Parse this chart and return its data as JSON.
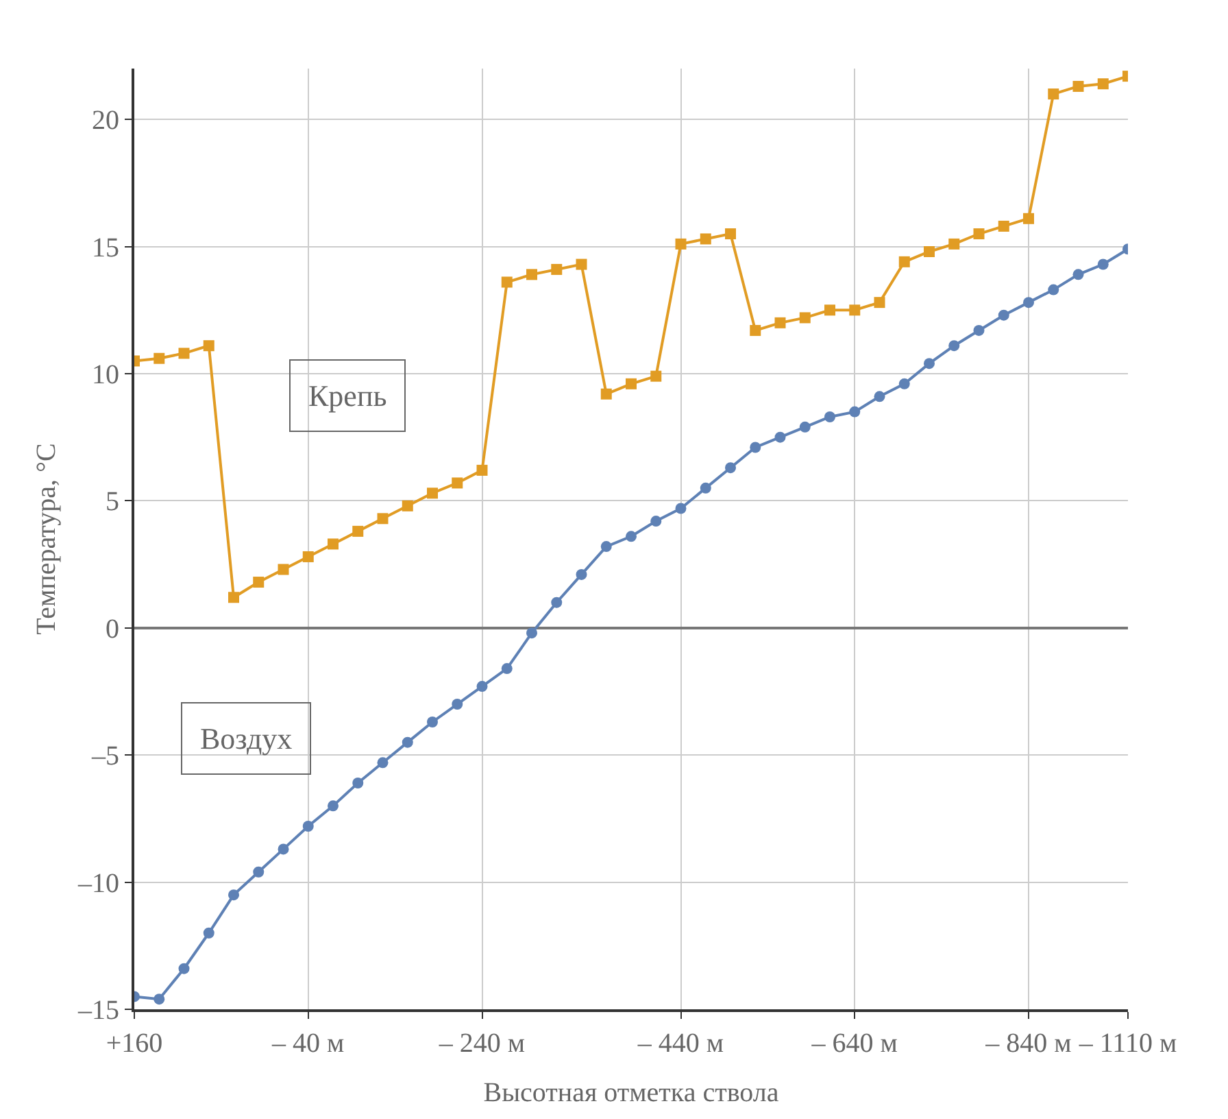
{
  "chart_data": {
    "type": "line",
    "xlabel": "Высотная отметка ствола",
    "ylabel": "Температура, °C",
    "categories": [
      "+160",
      null,
      null,
      null,
      null,
      null,
      null,
      "– 40 м",
      null,
      null,
      null,
      null,
      null,
      null,
      "– 240 м",
      null,
      null,
      null,
      null,
      null,
      null,
      null,
      "– 440 м",
      null,
      null,
      null,
      null,
      null,
      null,
      "– 640 м",
      null,
      null,
      null,
      null,
      null,
      null,
      "– 840 м",
      null,
      null,
      null,
      "– 1110 м"
    ],
    "series": [
      {
        "name": "Крепь",
        "color": "#e19c24",
        "marker": "square",
        "values": [
          10.5,
          10.6,
          10.8,
          11.1,
          1.2,
          1.8,
          2.3,
          2.8,
          3.3,
          3.8,
          4.3,
          4.8,
          5.3,
          5.7,
          6.2,
          13.6,
          13.9,
          14.1,
          14.3,
          9.2,
          9.6,
          9.9,
          15.1,
          15.3,
          15.5,
          11.7,
          12.0,
          12.2,
          12.5,
          12.5,
          12.8,
          14.4,
          14.8,
          15.1,
          15.5,
          15.8,
          16.1,
          21.0,
          21.3,
          21.4,
          21.7
        ]
      },
      {
        "name": "Воздух",
        "color": "#5e81b5",
        "marker": "circle",
        "values": [
          -14.5,
          -14.6,
          -13.4,
          -12.0,
          -10.5,
          -9.6,
          -8.7,
          -7.8,
          -7.0,
          -6.1,
          -5.3,
          -4.5,
          -3.7,
          -3.0,
          -2.3,
          -1.6,
          -0.2,
          1.0,
          2.1,
          3.2,
          3.6,
          4.2,
          4.7,
          5.5,
          6.3,
          7.1,
          7.5,
          7.9,
          8.3,
          8.5,
          9.1,
          9.6,
          10.4,
          11.1,
          11.7,
          12.3,
          12.8,
          13.3,
          13.9,
          14.3,
          14.9
        ]
      }
    ],
    "ylim": [
      -15,
      22
    ],
    "yticks": [
      {
        "value": -15,
        "label": "–15"
      },
      {
        "value": -10,
        "label": "–10"
      },
      {
        "value": -5,
        "label": "–5"
      },
      0,
      5,
      10,
      15,
      20
    ],
    "grid": true,
    "legend": false,
    "line_style": "solid"
  }
}
